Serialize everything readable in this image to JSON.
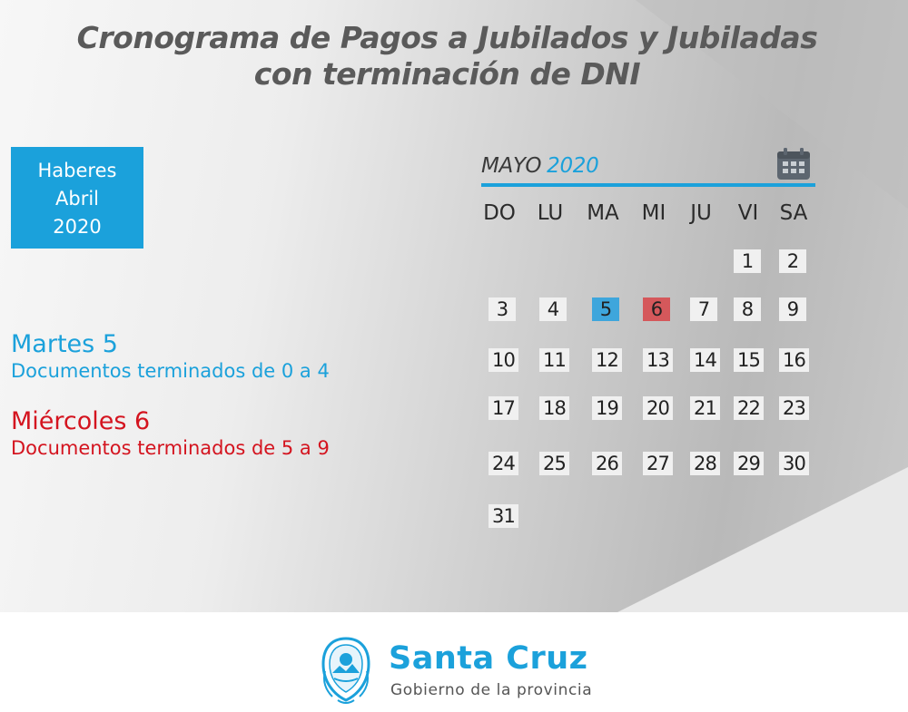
{
  "title": {
    "line1": "Cronograma de Pagos a Jubilados y Jubiladas",
    "line2": "con terminación de DNI"
  },
  "haberes": {
    "line1": "Haberes",
    "line2": "Abril",
    "line3": "2020"
  },
  "schedule": [
    {
      "day": "Martes 5",
      "docs": "Documentos terminados de 0 a 4",
      "color": "#1ba1db"
    },
    {
      "day": "Miércoles 6",
      "docs": "Documentos terminados de 5 a 9",
      "color": "#d4141f"
    }
  ],
  "calendar": {
    "month": "MAYO",
    "year": "2020",
    "icon": "calendar-icon",
    "weekdays": [
      "DO",
      "LU",
      "MA",
      "MI",
      "JU",
      "VI",
      "SA"
    ],
    "weeks": [
      [
        "",
        "",
        "",
        "",
        "",
        "1",
        "2"
      ],
      [
        "3",
        "4",
        "5",
        "6",
        "7",
        "8",
        "9"
      ],
      [
        "10",
        "11",
        "12",
        "13",
        "14",
        "15",
        "16"
      ],
      [
        "17",
        "18",
        "19",
        "20",
        "21",
        "22",
        "23"
      ],
      [
        "24",
        "25",
        "26",
        "27",
        "28",
        "29",
        "30"
      ],
      [
        "31",
        "",
        "",
        "",
        "",
        "",
        ""
      ]
    ],
    "highlights": {
      "5": "#3ea6dc",
      "6": "#d5585b"
    }
  },
  "footer": {
    "brand": "Santa Cruz",
    "subtitle": "Gobierno de la provincia",
    "logo": "coat-of-arms-icon",
    "brand_color": "#1ba1db"
  }
}
